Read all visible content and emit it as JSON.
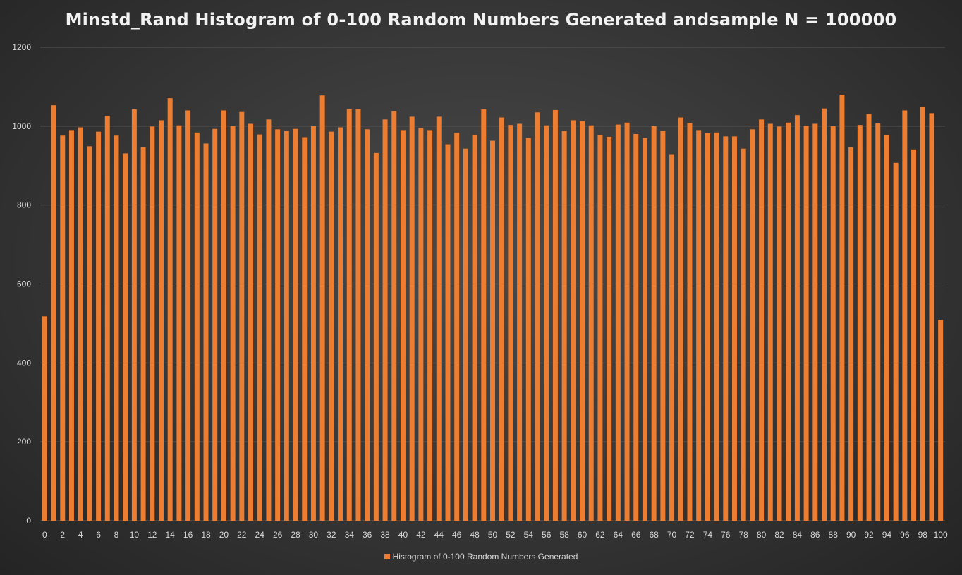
{
  "chart_data": {
    "type": "bar",
    "title": "Minstd_Rand Histogram of 0-100 Random Numbers Generated andsample N = 100000",
    "xlabel": "",
    "ylabel": "",
    "ylim": [
      0,
      1200
    ],
    "yticks": [
      0,
      200,
      400,
      600,
      800,
      1000,
      1200
    ],
    "xtick_labels": [
      "0",
      "2",
      "4",
      "6",
      "8",
      "10",
      "12",
      "14",
      "16",
      "18",
      "20",
      "22",
      "24",
      "26",
      "28",
      "30",
      "32",
      "34",
      "36",
      "38",
      "40",
      "42",
      "44",
      "46",
      "48",
      "50",
      "52",
      "54",
      "56",
      "58",
      "60",
      "62",
      "64",
      "66",
      "68",
      "70",
      "72",
      "74",
      "76",
      "78",
      "80",
      "82",
      "84",
      "86",
      "88",
      "90",
      "92",
      "94",
      "96",
      "98",
      "100"
    ],
    "categories": [
      "0",
      "1",
      "2",
      "3",
      "4",
      "5",
      "6",
      "7",
      "8",
      "9",
      "10",
      "11",
      "12",
      "13",
      "14",
      "15",
      "16",
      "17",
      "18",
      "19",
      "20",
      "21",
      "22",
      "23",
      "24",
      "25",
      "26",
      "27",
      "28",
      "29",
      "30",
      "31",
      "32",
      "33",
      "34",
      "35",
      "36",
      "37",
      "38",
      "39",
      "40",
      "41",
      "42",
      "43",
      "44",
      "45",
      "46",
      "47",
      "48",
      "49",
      "50",
      "51",
      "52",
      "53",
      "54",
      "55",
      "56",
      "57",
      "58",
      "59",
      "60",
      "61",
      "62",
      "63",
      "64",
      "65",
      "66",
      "67",
      "68",
      "69",
      "70",
      "71",
      "72",
      "73",
      "74",
      "75",
      "76",
      "77",
      "78",
      "79",
      "80",
      "81",
      "82",
      "83",
      "84",
      "85",
      "86",
      "87",
      "88",
      "89",
      "90",
      "91",
      "92",
      "93",
      "94",
      "95",
      "96",
      "97",
      "98",
      "99",
      "100"
    ],
    "series": [
      {
        "name": "Histogram of 0-100 Random Numbers Generated",
        "color": "#ed7d31",
        "values": [
          518,
          1053,
          976,
          990,
          997,
          949,
          986,
          1026,
          976,
          931,
          1043,
          947,
          999,
          1015,
          1071,
          1002,
          1040,
          984,
          956,
          993,
          1040,
          1000,
          1036,
          1006,
          979,
          1017,
          992,
          988,
          993,
          972,
          1000,
          1078,
          986,
          997,
          1043,
          1043,
          992,
          932,
          1017,
          1038,
          990,
          1024,
          995,
          990,
          1024,
          954,
          983,
          943,
          977,
          1043,
          963,
          1022,
          1003,
          1006,
          970,
          1035,
          1002,
          1041,
          988,
          1015,
          1013,
          1002,
          977,
          973,
          1004,
          1009,
          980,
          970,
          1000,
          988,
          929,
          1022,
          1008,
          990,
          982,
          984,
          974,
          974,
          943,
          992,
          1017,
          1006,
          999,
          1009,
          1028,
          1001,
          1006,
          1045,
          1000,
          1080,
          947,
          1003,
          1031,
          1007,
          977,
          907,
          1040,
          941,
          1049,
          1033,
          509
        ]
      }
    ],
    "grid": "horizontal",
    "legend_position": "bottom",
    "background": "#3c3c3c",
    "gridline_color": "#595959"
  }
}
